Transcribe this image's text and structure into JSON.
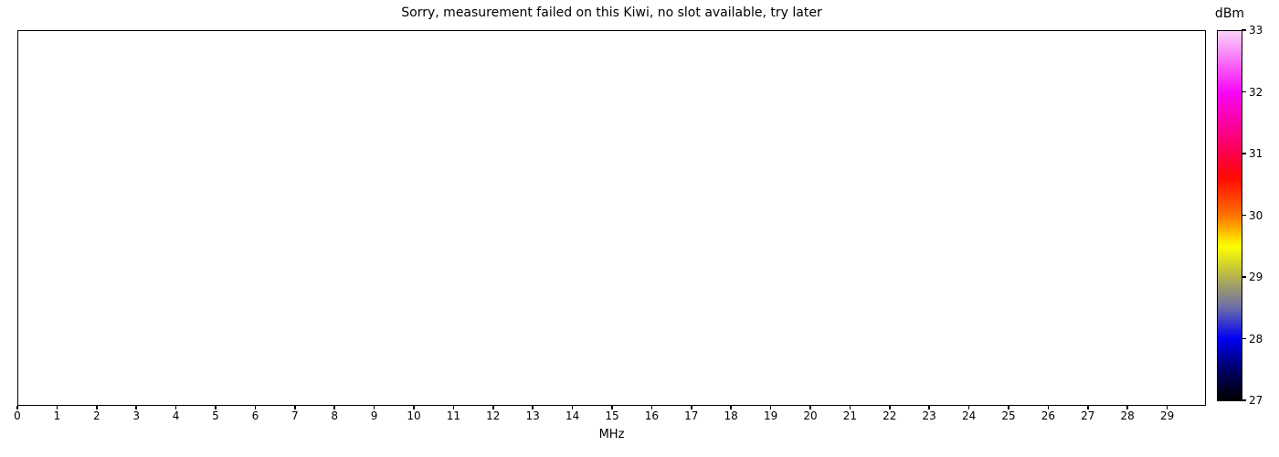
{
  "chart_data": {
    "type": "heatmap",
    "title": "Sorry, measurement failed on this Kiwi, no slot available, try later",
    "xlabel": "MHz",
    "xlim": [
      0,
      30
    ],
    "xticks": [
      0,
      1,
      2,
      3,
      4,
      5,
      6,
      7,
      8,
      9,
      10,
      11,
      12,
      13,
      14,
      15,
      16,
      17,
      18,
      19,
      20,
      21,
      22,
      23,
      24,
      25,
      26,
      27,
      28,
      29
    ],
    "grid": false,
    "values": [],
    "plot_background": "#ffffff",
    "axis_color": "#000000",
    "colorbar": {
      "label": "dBm",
      "range": [
        27,
        33
      ],
      "ticks": [
        33,
        32,
        31,
        30,
        29,
        28,
        27
      ],
      "gradient_stops": [
        {
          "value": 27.0,
          "color": "#000000"
        },
        {
          "value": 27.5,
          "color": "#000066"
        },
        {
          "value": 28.0,
          "color": "#0000f2"
        },
        {
          "value": 28.5,
          "color": "#6b6baa"
        },
        {
          "value": 29.0,
          "color": "#b2b24e"
        },
        {
          "value": 29.5,
          "color": "#ffff00"
        },
        {
          "value": 30.0,
          "color": "#ff7300"
        },
        {
          "value": 30.6,
          "color": "#ff0a00"
        },
        {
          "value": 31.0,
          "color": "#fb0049"
        },
        {
          "value": 32.0,
          "color": "#f605f6"
        },
        {
          "value": 33.0,
          "color": "#f9d3f9"
        }
      ]
    }
  }
}
